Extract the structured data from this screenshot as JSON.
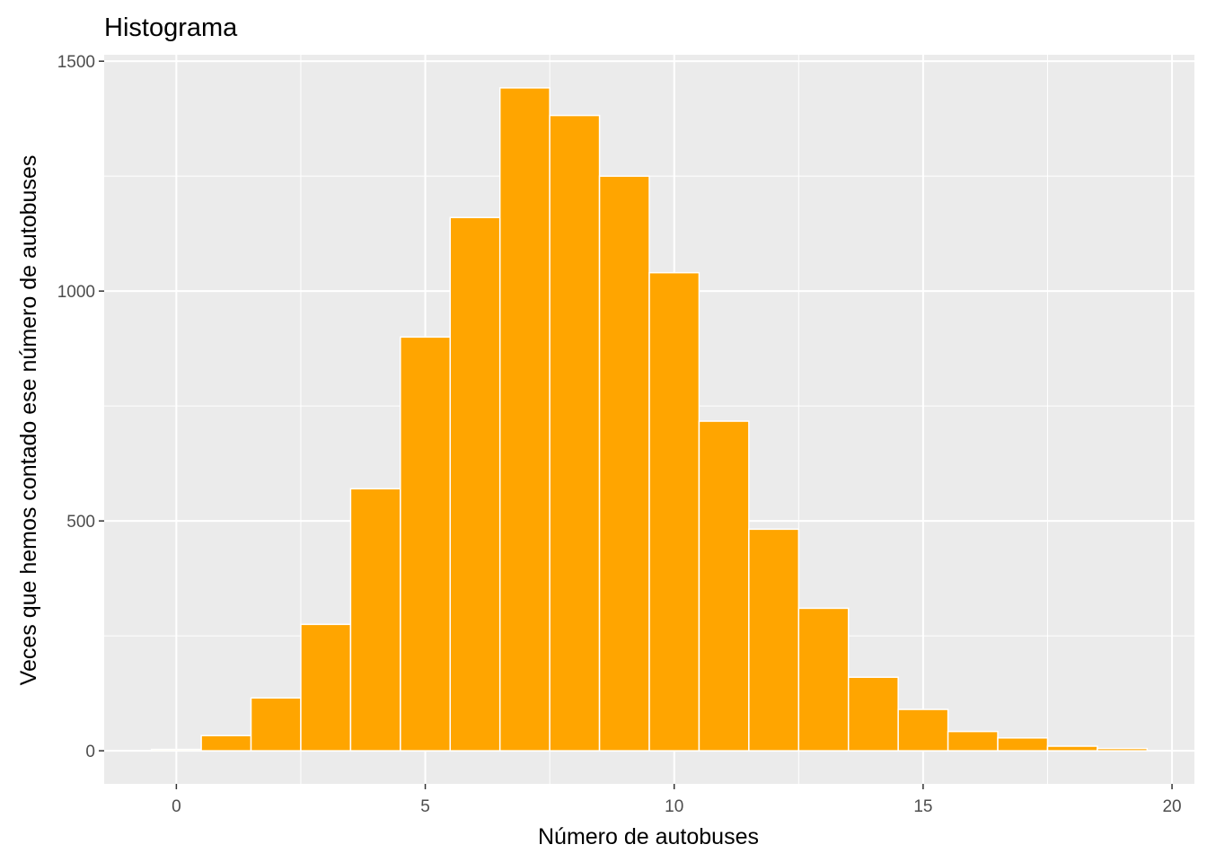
{
  "chart_data": {
    "type": "bar",
    "title": "Histograma",
    "xlabel": "Número de autobuses",
    "ylabel": "Veces que hemos contado ese número de autobuses",
    "x": [
      0,
      1,
      2,
      3,
      4,
      5,
      6,
      7,
      8,
      9,
      10,
      11,
      12,
      13,
      14,
      15,
      16,
      17,
      18,
      19
    ],
    "values": [
      3,
      33,
      115,
      275,
      570,
      900,
      1160,
      1442,
      1382,
      1250,
      1040,
      717,
      482,
      310,
      160,
      90,
      42,
      28,
      10,
      5
    ],
    "bin_width": 1,
    "xlim": [
      -1.45,
      20.45
    ],
    "ylim": [
      -72,
      1514
    ],
    "xticks": [
      0,
      5,
      10,
      15,
      20
    ],
    "yticks": [
      0,
      500,
      1000,
      1500
    ],
    "grid": true,
    "colors": {
      "bar_fill": "#FFA500",
      "bar_outline": "#FFFFFF",
      "panel_background": "#EBEBEB",
      "grid_major": "#FFFFFF",
      "tick_label": "#4D4D4D"
    }
  }
}
